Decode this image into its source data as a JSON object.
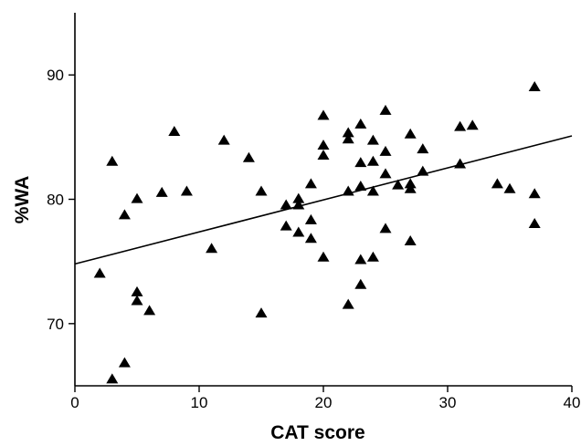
{
  "chart_data": {
    "type": "scatter",
    "xlabel": "CAT score",
    "ylabel": "%WA",
    "xlim": [
      0,
      40
    ],
    "ylim": [
      65,
      95
    ],
    "xticks": [
      0,
      10,
      20,
      30,
      40
    ],
    "yticks": [
      70,
      80,
      90
    ],
    "grid": false,
    "marker": "triangle",
    "color": "#000000",
    "series": [
      {
        "points": [
          [
            2,
            74.0
          ],
          [
            3,
            83.0
          ],
          [
            3,
            65.5
          ],
          [
            4,
            78.7
          ],
          [
            4,
            66.8
          ],
          [
            5,
            80.0
          ],
          [
            5,
            72.5
          ],
          [
            5,
            71.8
          ],
          [
            6,
            71.0
          ],
          [
            7,
            80.5
          ],
          [
            8,
            85.4
          ],
          [
            9,
            80.6
          ],
          [
            11,
            76.0
          ],
          [
            12,
            84.7
          ],
          [
            14,
            83.3
          ],
          [
            15,
            80.6
          ],
          [
            15,
            70.8
          ],
          [
            17,
            79.5
          ],
          [
            17,
            77.8
          ],
          [
            18,
            80.0
          ],
          [
            18,
            79.5
          ],
          [
            18,
            77.3
          ],
          [
            19,
            81.2
          ],
          [
            19,
            78.3
          ],
          [
            19,
            76.8
          ],
          [
            20,
            86.7
          ],
          [
            20,
            84.3
          ],
          [
            20,
            83.5
          ],
          [
            20,
            75.3
          ],
          [
            22,
            85.3
          ],
          [
            22,
            84.8
          ],
          [
            22,
            80.6
          ],
          [
            22,
            71.5
          ],
          [
            23,
            86.0
          ],
          [
            23,
            82.9
          ],
          [
            23,
            81.0
          ],
          [
            23,
            75.1
          ],
          [
            23,
            73.1
          ],
          [
            24,
            84.7
          ],
          [
            24,
            83.0
          ],
          [
            24,
            80.6
          ],
          [
            24,
            75.3
          ],
          [
            25,
            87.1
          ],
          [
            25,
            83.8
          ],
          [
            25,
            82.0
          ],
          [
            25,
            77.6
          ],
          [
            26,
            81.1
          ],
          [
            27,
            85.2
          ],
          [
            27,
            81.2
          ],
          [
            27,
            80.8
          ],
          [
            27,
            76.6
          ],
          [
            28,
            84.0
          ],
          [
            28,
            82.2
          ],
          [
            31,
            85.8
          ],
          [
            31,
            82.8
          ],
          [
            32,
            85.9
          ],
          [
            34,
            81.2
          ],
          [
            35,
            80.8
          ],
          [
            37,
            89.0
          ],
          [
            37,
            80.4
          ],
          [
            37,
            78.0
          ]
        ]
      }
    ],
    "trendline": {
      "x": [
        0,
        40
      ],
      "y": [
        74.8,
        85.1
      ]
    }
  }
}
